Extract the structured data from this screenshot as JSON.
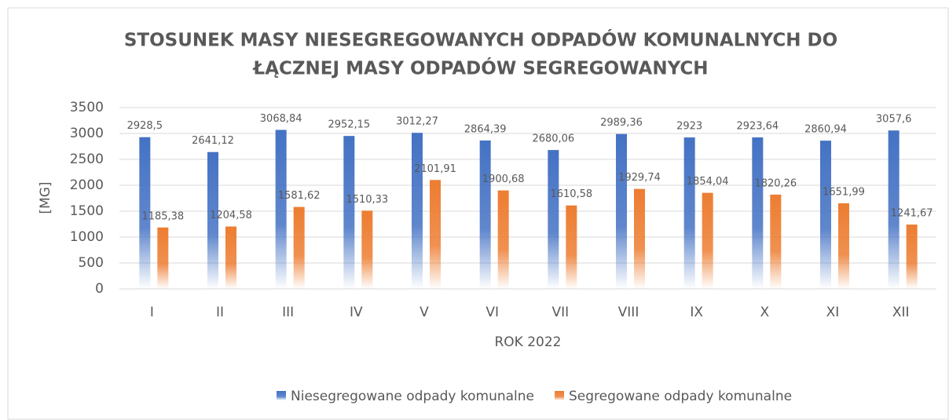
{
  "chart_data": {
    "type": "bar",
    "title": [
      "STOSUNEK MASY NIESEGREGOWANYCH ODPADÓW KOMUNALNYCH DO",
      "ŁĄCZNEJ MASY ODPADÓW SEGREGOWANYCH"
    ],
    "x_label": "ROK 2022",
    "y_label": "[MG]",
    "categories": [
      "I",
      "II",
      "III",
      "IV",
      "V",
      "VI",
      "VII",
      "VIII",
      "IX",
      "X",
      "XI",
      "XII"
    ],
    "series": [
      {
        "name": "Niesegregowane odpady komunalne",
        "color": "#4472c4",
        "values": [
          2928.5,
          2641.12,
          3068.84,
          2952.15,
          3012.27,
          2864.39,
          2680.06,
          2989.36,
          2923,
          2923.64,
          2860.94,
          3057.6
        ],
        "value_labels": [
          "2928,5",
          "2641,12",
          "3068,84",
          "2952,15",
          "3012,27",
          "2864,39",
          "2680,06",
          "2989,36",
          "2923",
          "2923,64",
          "2860,94",
          "3057,6"
        ]
      },
      {
        "name": "Segregowane odpady komunalne",
        "color": "#ed7d31",
        "values": [
          1185.38,
          1204.58,
          1581.62,
          1510.33,
          2101.91,
          1900.68,
          1610.58,
          1929.74,
          1854.04,
          1820.26,
          1651.99,
          1241.67
        ],
        "value_labels": [
          "1185,38",
          "1204,58",
          "1581,62",
          "1510,33",
          "2101,91",
          "1900,68",
          "1610,58",
          "1929,74",
          "1854,04",
          "1820,26",
          "1651,99",
          "1241,67"
        ]
      }
    ],
    "ylim": [
      0,
      3500
    ],
    "yticks": [
      0,
      500,
      1000,
      1500,
      2000,
      2500,
      3000,
      3500
    ],
    "grid": true,
    "legend": "bottom"
  }
}
